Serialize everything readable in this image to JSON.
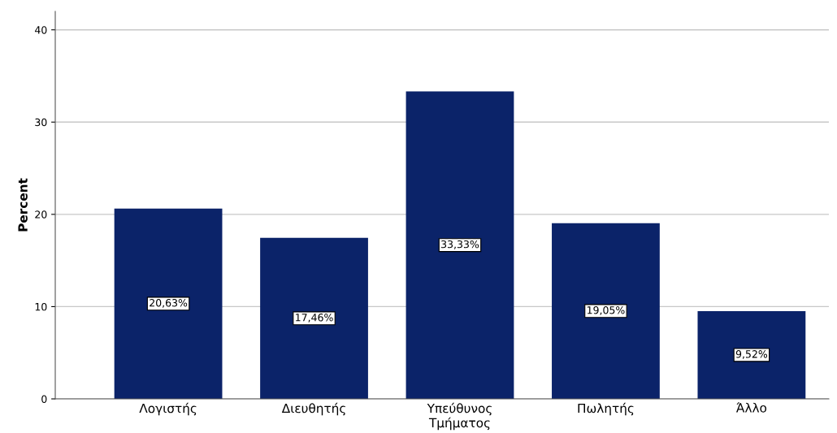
{
  "chart_data": {
    "type": "bar",
    "ylabel": "Percent",
    "categories": [
      "Λογιστής",
      "Διευθητής",
      "Υπεύθυνος\nΤμήματος",
      "Πωλητής",
      "Άλλο"
    ],
    "values": [
      20.63,
      17.46,
      33.33,
      19.05,
      9.52
    ],
    "value_labels": [
      "20,63%",
      "17,46%",
      "33,33%",
      "19,05%",
      "9,52%"
    ],
    "color": "#0b2369",
    "ylim": [
      0,
      42
    ],
    "yticks": [
      0,
      10,
      20,
      30,
      40
    ],
    "grid": "y",
    "legend": false
  }
}
